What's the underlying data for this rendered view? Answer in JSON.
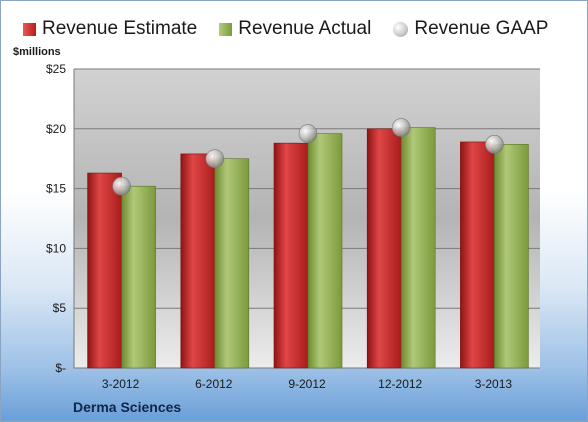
{
  "unit_label": "$millions",
  "company": "Derma Sciences",
  "legend": [
    {
      "label": "Revenue Estimate",
      "color": "#c0262a"
    },
    {
      "label": "Revenue Actual",
      "color": "#8fac4e"
    },
    {
      "label": "Revenue GAAP",
      "color": "#c0c0c0"
    }
  ],
  "chart_data": {
    "type": "bar",
    "categories": [
      "3-2012",
      "6-2012",
      "9-2012",
      "12-2012",
      "3-2013"
    ],
    "series": [
      {
        "name": "Revenue Estimate",
        "values": [
          16.3,
          17.9,
          18.8,
          20.0,
          18.9
        ]
      },
      {
        "name": "Revenue Actual",
        "values": [
          15.2,
          17.5,
          19.6,
          20.1,
          18.7
        ]
      },
      {
        "name": "Revenue GAAP",
        "values": [
          15.2,
          17.5,
          19.6,
          20.1,
          18.7
        ]
      }
    ],
    "ylim": [
      0,
      25
    ],
    "yticks": [
      0,
      5,
      10,
      15,
      20,
      25
    ],
    "ytick_labels": [
      "$-",
      "$5",
      "$10",
      "$15",
      "$20",
      "$25"
    ],
    "grid": true
  }
}
